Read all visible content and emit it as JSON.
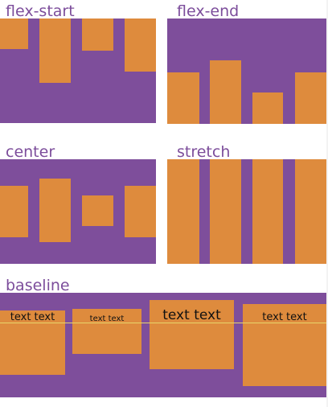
{
  "panels": {
    "flex_start": {
      "title": "flex-start"
    },
    "flex_end": {
      "title": "flex-end"
    },
    "center": {
      "title": "center"
    },
    "stretch": {
      "title": "stretch"
    },
    "baseline": {
      "title": "baseline",
      "items": [
        "text text",
        "text text",
        "text text",
        "text text"
      ]
    }
  },
  "colors": {
    "container": "#7e4e9b",
    "item": "#de8b3d",
    "title": "#7c4d9b",
    "baseline_guide": "#e8d66a"
  }
}
